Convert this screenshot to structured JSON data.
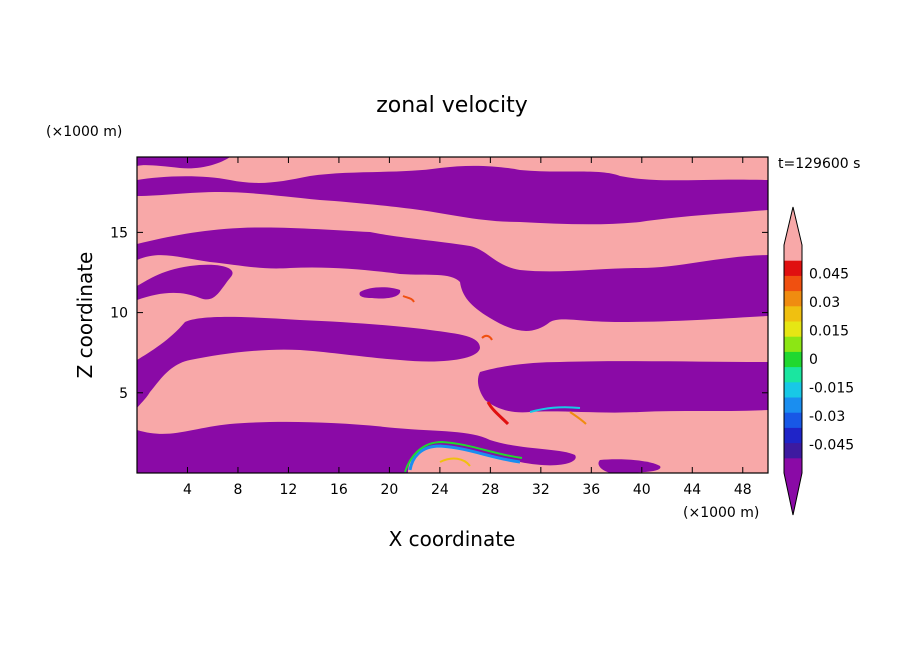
{
  "chart_data": {
    "type": "heatmap",
    "title": "zonal velocity",
    "xlabel": "X coordinate",
    "ylabel": "Z coordinate",
    "x_unit": "(×1000 m)",
    "y_unit": "(×1000 m)",
    "time_label": "t=129600 s",
    "xlim": [
      0,
      50
    ],
    "ylim": [
      0,
      19.7
    ],
    "x_ticks": [
      4,
      8,
      12,
      16,
      20,
      24,
      28,
      32,
      36,
      40,
      44,
      48
    ],
    "y_ticks": [
      5,
      10,
      15
    ],
    "colorbar": {
      "tick_labels": [
        "0.045",
        "0.03",
        "0.015",
        "0",
        "-0.015",
        "-0.03",
        "-0.045"
      ],
      "tick_values": [
        0.045,
        0.03,
        0.015,
        0,
        -0.015,
        -0.03,
        -0.045
      ],
      "colors": [
        "#8a0aa6",
        "#3d1aa0",
        "#1f24c8",
        "#1858e6",
        "#1a8ef0",
        "#18c8e6",
        "#1ae6a0",
        "#20d830",
        "#8ce614",
        "#e6e614",
        "#f0c010",
        "#f08c10",
        "#f05010",
        "#e01010",
        "#f8a8a8"
      ],
      "extend": "both"
    },
    "description_values": {
      "positive_color": "#f8a8a8",
      "negative_color": "#8a0aa6",
      "bands": [
        {
          "sign": "negative",
          "z_range": [
            0,
            2.5
          ]
        },
        {
          "sign": "positive",
          "z_range": [
            2.5,
            5.5
          ]
        },
        {
          "sign": "negative",
          "z_range": [
            5.5,
            9.5
          ]
        },
        {
          "sign": "positive",
          "z_range": [
            9.5,
            12
          ]
        },
        {
          "sign": "negative",
          "z_range": [
            12,
            15
          ]
        },
        {
          "sign": "positive",
          "z_range": [
            15,
            17
          ]
        },
        {
          "sign": "negative",
          "z_range": [
            17,
            19.7
          ]
        }
      ]
    }
  }
}
